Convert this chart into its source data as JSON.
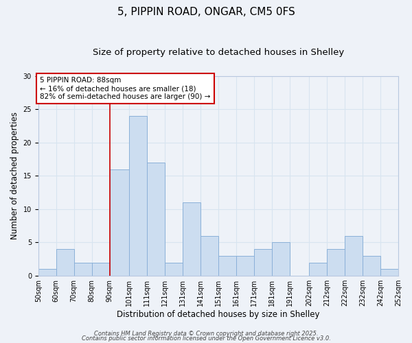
{
  "title": "5, PIPPIN ROAD, ONGAR, CM5 0FS",
  "subtitle": "Size of property relative to detached houses in Shelley",
  "xlabel": "Distribution of detached houses by size in Shelley",
  "ylabel": "Number of detached properties",
  "bin_labels": [
    "50sqm",
    "60sqm",
    "70sqm",
    "80sqm",
    "90sqm",
    "101sqm",
    "111sqm",
    "121sqm",
    "131sqm",
    "141sqm",
    "151sqm",
    "161sqm",
    "171sqm",
    "181sqm",
    "191sqm",
    "202sqm",
    "212sqm",
    "222sqm",
    "232sqm",
    "242sqm",
    "252sqm"
  ],
  "bin_edges": [
    50,
    60,
    70,
    80,
    90,
    101,
    111,
    121,
    131,
    141,
    151,
    161,
    171,
    181,
    191,
    202,
    212,
    222,
    232,
    242,
    252
  ],
  "counts": [
    1,
    4,
    2,
    2,
    16,
    24,
    17,
    2,
    11,
    6,
    3,
    3,
    4,
    5,
    0,
    2,
    4,
    6,
    3,
    1
  ],
  "bar_color": "#ccddf0",
  "bar_edge_color": "#8ab0d8",
  "grid_color": "#d8e4f0",
  "background_color": "#eef2f8",
  "vline_x": 90,
  "vline_color": "#cc0000",
  "annotation_text": "5 PIPPIN ROAD: 88sqm\n← 16% of detached houses are smaller (18)\n82% of semi-detached houses are larger (90) →",
  "annotation_box_facecolor": "#ffffff",
  "annotation_box_edgecolor": "#cc0000",
  "ylim": [
    0,
    30
  ],
  "yticks": [
    0,
    5,
    10,
    15,
    20,
    25,
    30
  ],
  "footer1": "Contains HM Land Registry data © Crown copyright and database right 2025.",
  "footer2": "Contains public sector information licensed under the Open Government Licence v3.0.",
  "title_fontsize": 11,
  "subtitle_fontsize": 9.5,
  "axis_label_fontsize": 8.5,
  "tick_fontsize": 7,
  "annotation_fontsize": 7.5,
  "footer_fontsize": 6,
  "ylabel_fontsize": 8.5
}
